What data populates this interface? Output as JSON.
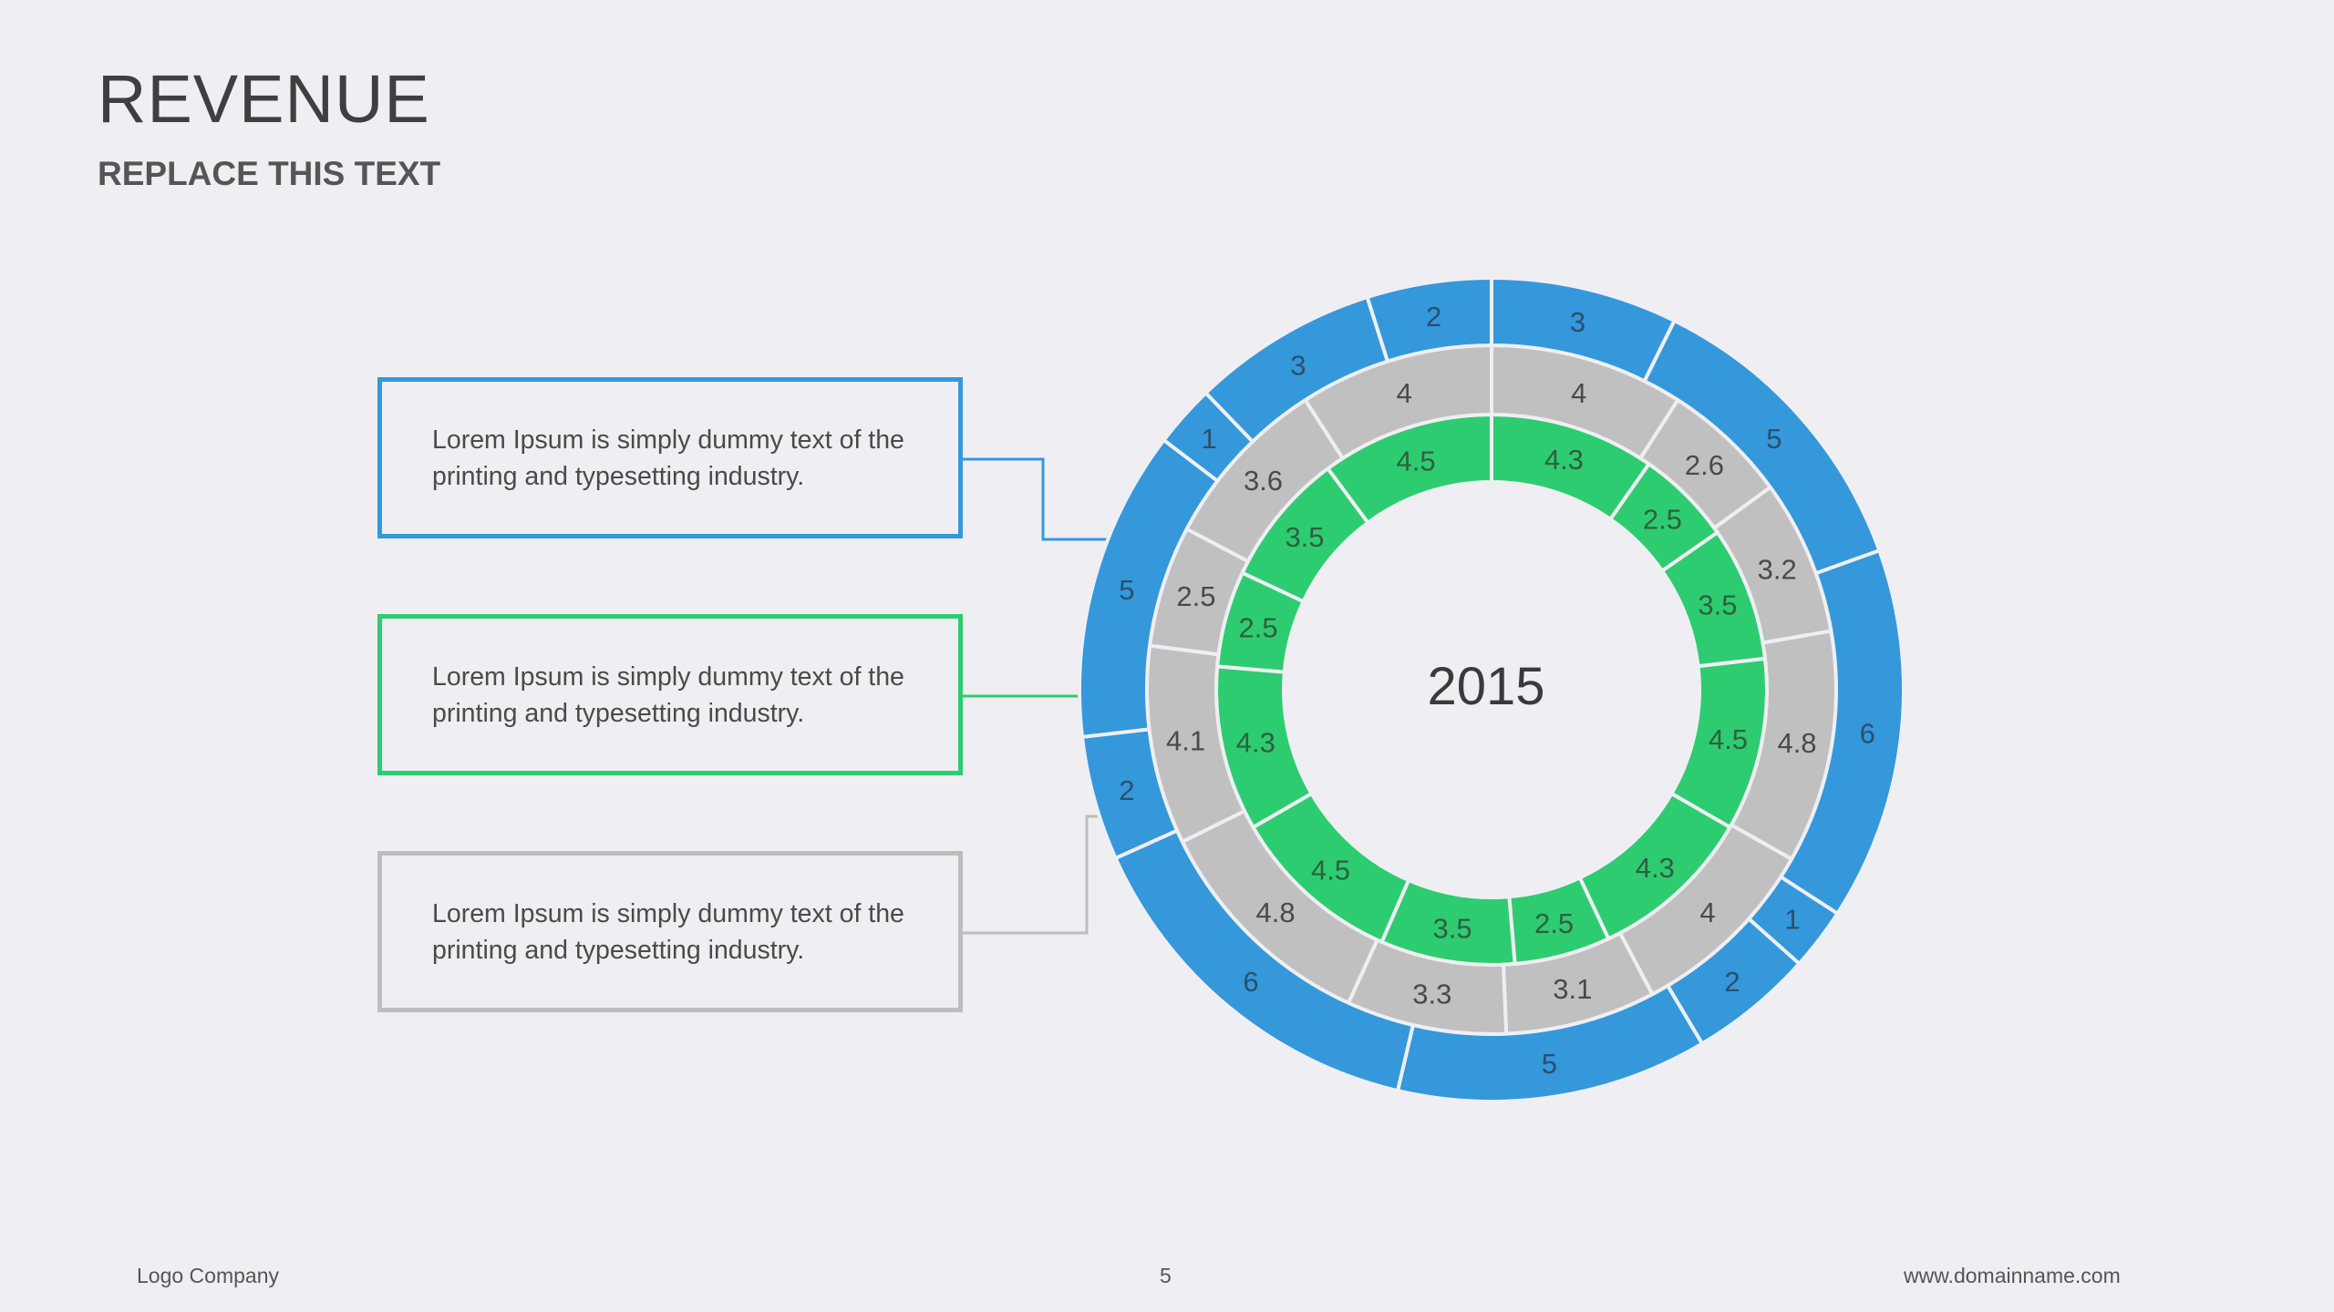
{
  "header": {
    "title": "REVENUE",
    "subtitle": "REPLACE THIS TEXT"
  },
  "callouts": [
    {
      "text": "Lorem Ipsum is simply dummy text of the printing and typesetting industry.",
      "color": "#3498db"
    },
    {
      "text": "Lorem Ipsum is simply dummy text of the printing and typesetting industry.",
      "color": "#2ecc71"
    },
    {
      "text": "Lorem Ipsum is simply dummy text of the printing and typesetting industry.",
      "color": "#bdbdbd"
    }
  ],
  "chart_data": {
    "type": "pie",
    "subtype": "multi-level-doughnut",
    "center_label": "2015",
    "rings": [
      {
        "level": "inner",
        "color": "#2ecc71",
        "values": [
          4.3,
          2.5,
          3.5,
          4.5,
          4.3,
          2.5,
          3.5,
          4.5,
          4.3,
          2.5,
          3.5,
          4.5
        ]
      },
      {
        "level": "middle",
        "color": "#c0c0c0",
        "values": [
          4,
          2.6,
          3.2,
          4.8,
          4,
          3.1,
          3.3,
          4.8,
          4.1,
          2.5,
          3.6,
          4
        ]
      },
      {
        "level": "outer",
        "color": "#3498db",
        "values": [
          3,
          5,
          6,
          1,
          2,
          5,
          6,
          2,
          5,
          1,
          3,
          2
        ]
      }
    ]
  },
  "footer": {
    "company": "Logo Company",
    "page": "5",
    "website": "www.domainname.com"
  }
}
